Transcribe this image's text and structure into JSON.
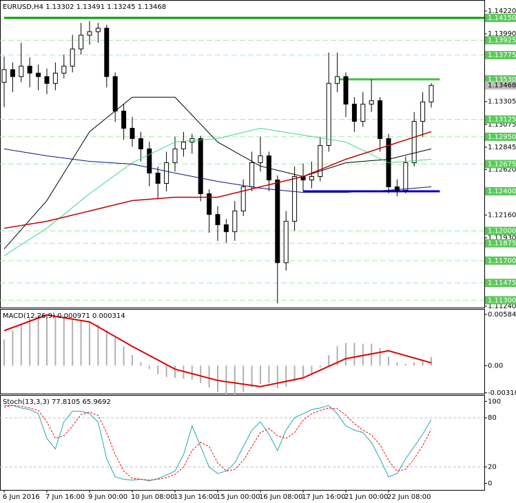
{
  "chart_data": [
    {
      "type": "candlestick",
      "title": "EURUSD,H4  1.13302 1.13491 1.13245 1.13468",
      "candles": [
        [
          1.135,
          1.1376,
          1.1325,
          1.13628
        ],
        [
          1.13628,
          1.137,
          1.134,
          1.13558
        ],
        [
          1.13558,
          1.139,
          1.135,
          1.13663
        ],
        [
          1.13663,
          1.1375,
          1.1345,
          1.13593
        ],
        [
          1.13593,
          1.1368,
          1.1342,
          1.13558
        ],
        [
          1.13558,
          1.1364,
          1.1338,
          1.13489
        ],
        [
          1.13489,
          1.137,
          1.1342,
          1.13593
        ],
        [
          1.13593,
          1.1378,
          1.1354,
          1.13663
        ],
        [
          1.13663,
          1.1398,
          1.136,
          1.13837
        ],
        [
          1.13837,
          1.141,
          1.1378,
          1.13976
        ],
        [
          1.13976,
          1.1412,
          1.1388,
          1.14011
        ],
        [
          1.14011,
          1.141,
          1.139,
          1.14046
        ],
        [
          1.14046,
          1.1408,
          1.1345,
          1.13558
        ],
        [
          1.13558,
          1.136,
          1.131,
          1.1321
        ],
        [
          1.1321,
          1.1328,
          1.1292,
          1.13036
        ],
        [
          1.13036,
          1.1315,
          1.1285,
          1.12932
        ],
        [
          1.12932,
          1.13,
          1.127,
          1.12828
        ],
        [
          1.12828,
          1.129,
          1.1245,
          1.12584
        ],
        [
          1.12584,
          1.1265,
          1.1232,
          1.1248
        ],
        [
          1.1248,
          1.128,
          1.124,
          1.12689
        ],
        [
          1.12689,
          1.1295,
          1.126,
          1.12828
        ],
        [
          1.12828,
          1.13,
          1.1275,
          1.12897
        ],
        [
          1.12897,
          1.1298,
          1.1278,
          1.12932
        ],
        [
          1.12932,
          1.1296,
          1.123,
          1.12375
        ],
        [
          1.12375,
          1.1242,
          1.1198,
          1.12166
        ],
        [
          1.12166,
          1.1225,
          1.119,
          1.12062
        ],
        [
          1.12062,
          1.1212,
          1.1188,
          1.11992
        ],
        [
          1.11992,
          1.123,
          1.119,
          1.12201
        ],
        [
          1.12201,
          1.1252,
          1.1215,
          1.12445
        ],
        [
          1.12445,
          1.128,
          1.124,
          1.12689
        ],
        [
          1.12689,
          1.1295,
          1.126,
          1.12758
        ],
        [
          1.12758,
          1.128,
          1.124,
          1.12514
        ],
        [
          1.12514,
          1.1256,
          1.1127,
          1.11679
        ],
        [
          1.11679,
          1.122,
          1.116,
          1.12097
        ],
        [
          1.12097,
          1.1265,
          1.12,
          1.12549
        ],
        [
          1.12549,
          1.1268,
          1.124,
          1.12514
        ],
        [
          1.12514,
          1.127,
          1.1243,
          1.12549
        ],
        [
          1.12549,
          1.1295,
          1.125,
          1.12862
        ],
        [
          1.12862,
          1.138,
          1.128,
          1.13489
        ],
        [
          1.13489,
          1.138,
          1.134,
          1.13558
        ],
        [
          1.13558,
          1.136,
          1.1315,
          1.1328
        ],
        [
          1.1328,
          1.1335,
          1.13,
          1.13106
        ],
        [
          1.13106,
          1.134,
          1.1305,
          1.1328
        ],
        [
          1.1328,
          1.1353,
          1.132,
          1.13315
        ],
        [
          1.13315,
          1.1335,
          1.128,
          1.12932
        ],
        [
          1.12932,
          1.1298,
          1.1238,
          1.12445
        ],
        [
          1.12445,
          1.1252,
          1.1235,
          1.1241
        ],
        [
          1.1241,
          1.1275,
          1.1238,
          1.12689
        ],
        [
          1.12689,
          1.132,
          1.1265,
          1.13106
        ],
        [
          1.13106,
          1.134,
          1.1295,
          1.13302
        ],
        [
          1.13302,
          1.13491,
          1.13245,
          1.13468
        ]
      ],
      "ylim": [
        1.11226,
        1.14324
      ],
      "yticks": [
        {
          "value": 1.1422,
          "label": "1.14220"
        },
        {
          "value": 1.1399,
          "label": "1.13990"
        },
        {
          "value": 1.13305,
          "label": "1.13305"
        },
        {
          "value": 1.13075,
          "label": "1.13075"
        },
        {
          "value": 1.12845,
          "label": "1.12845"
        },
        {
          "value": 1.1262,
          "label": "1.12620"
        },
        {
          "value": 1.1216,
          "label": "1.12160"
        },
        {
          "value": 1.1193,
          "label": "1.11930"
        },
        {
          "value": 1.1124,
          "label": "1.11240"
        }
      ],
      "level_label_color": "#5cc85c",
      "levels": [
        {
          "value": 1.1415,
          "label": "1.14150",
          "color": "#00a000",
          "style": "solid",
          "x_start": 0,
          "x_end": 57
        },
        {
          "value": 1.13925,
          "label": "1.13925",
          "color": "#a8e8a8",
          "style": "dashed"
        },
        {
          "value": 1.13775,
          "label": "1.13775",
          "color": "#a8e8a8",
          "style": "dashed"
        },
        {
          "value": 1.1353,
          "label": "1.13530",
          "color": "#40c040",
          "style": "solid",
          "x_start": 39,
          "x_end": 51
        },
        {
          "value": 1.13125,
          "label": "1.13125",
          "color": "#a8e8a8",
          "style": "dashed"
        },
        {
          "value": 1.1295,
          "label": "1.12950",
          "color": "#a8e8a8",
          "style": "dashed"
        },
        {
          "value": 1.12675,
          "label": "1.12675",
          "color": "#a8e8a8",
          "style": "dashed"
        },
        {
          "value": 1.124,
          "label": "1.12400",
          "color": "#0000d0",
          "style": "solid",
          "x_start": 35,
          "x_end": 51
        },
        {
          "value": 1.12,
          "label": "1.12000",
          "color": "#a8e8a8",
          "style": "dashed"
        },
        {
          "value": 1.11875,
          "label": "1.11875",
          "color": "#a8e8a8",
          "style": "dashed"
        },
        {
          "value": 1.117,
          "label": "1.11700",
          "color": "#a8e8a8",
          "style": "dashed"
        },
        {
          "value": 1.11475,
          "label": "1.11475",
          "color": "#a8e8a8",
          "style": "dashed"
        },
        {
          "value": 1.113,
          "label": "1.11300",
          "color": "#a8e8a8",
          "style": "dashed"
        }
      ],
      "last_price": {
        "value": 1.13468,
        "label": "1.13468"
      },
      "ma_x": [
        0,
        5,
        10,
        15,
        20,
        25,
        30,
        35,
        40,
        45,
        50
      ],
      "series": [
        {
          "color": "#000000",
          "values": [
            1.11818,
            1.12306,
            1.13002,
            1.1335,
            1.1335,
            1.12897,
            1.12654,
            1.12549,
            1.12688,
            1.12723,
            1.12828
          ]
        },
        {
          "color": "#3cd88c",
          "values": [
            1.11749,
            1.12027,
            1.12375,
            1.12688,
            1.12897,
            1.12932,
            1.13036,
            1.12967,
            1.12897,
            1.12688,
            1.12723
          ]
        },
        {
          "color": "#c00000",
          "values": [
            1.12027,
            1.12097,
            1.12201,
            1.12306,
            1.1234,
            1.1234,
            1.12445,
            1.12549,
            1.12723,
            1.12862,
            1.13002
          ]
        },
        {
          "color": "#101080",
          "values": [
            1.12828,
            1.12758,
            1.12702,
            1.12674,
            1.12584,
            1.125,
            1.12431,
            1.12389,
            1.12389,
            1.1241,
            1.12445
          ]
        }
      ],
      "xticks": [
        {
          "value": 0,
          "label": "6 Jun 2016"
        },
        {
          "value": 5,
          "label": "7 Jun 16:00"
        },
        {
          "value": 10,
          "label": "9 Jun 00:00"
        },
        {
          "value": 15,
          "label": "10 Jun 08:00"
        },
        {
          "value": 20,
          "label": "13 Jun 16:00"
        },
        {
          "value": 25,
          "label": "15 Jun 00:00"
        },
        {
          "value": 30,
          "label": "16 Jun 08:00"
        },
        {
          "value": 35,
          "label": "17 Jun 16:00"
        },
        {
          "value": 40,
          "label": "21 Jun 00:00"
        },
        {
          "value": 45,
          "label": "22 Jun 08:00"
        }
      ]
    },
    {
      "type": "macd",
      "title": "MACD(12,26,9) 0.000971 0.000314",
      "histogram_color": "#b0b0b0",
      "histogram": [
        0.003,
        0.004,
        0.0048,
        0.0054,
        0.0058,
        0.0058,
        0.0057,
        0.0055,
        0.0053,
        0.0052,
        0.005,
        0.0047,
        0.004,
        0.0032,
        0.0022,
        0.0012,
        0.0004,
        -0.0004,
        -0.001,
        -0.0013,
        -0.0014,
        -0.0015,
        -0.0016,
        -0.002,
        -0.0025,
        -0.003,
        -0.0033,
        -0.0033,
        -0.003,
        -0.0025,
        -0.0021,
        -0.002,
        -0.0026,
        -0.0024,
        -0.0018,
        -0.0013,
        -0.0009,
        -0.0002,
        0.0012,
        0.0022,
        0.0026,
        0.0026,
        0.0025,
        0.0025,
        0.002,
        0.001,
        0.0004,
        0.0002,
        0.0004,
        0.0007,
        0.000971
      ],
      "signal": {
        "color": "#e00000",
        "x": [
          0,
          5,
          10,
          15,
          20,
          25,
          30,
          35,
          40,
          45,
          50
        ],
        "values": [
          0.004,
          0.0058,
          0.005,
          0.0022,
          -0.0004,
          -0.0017,
          -0.0024,
          -0.0014,
          0.0008,
          0.0017,
          0.000314
        ]
      },
      "ylim": [
        -0.0032,
        0.0064
      ],
      "yticks": [
        0.005843,
        {
          "value": 0,
          "label": "0.00"
        },
        -0.003109
      ]
    },
    {
      "type": "stochastic",
      "title": "Stoch(13,3,3) 77.8105 65.9692",
      "series": [
        {
          "color": "#20a8b0",
          "dash": false,
          "values": [
            95,
            95,
            92,
            90,
            85,
            55,
            42,
            75,
            88,
            88,
            85,
            75,
            30,
            8,
            5,
            4,
            5,
            3,
            6,
            10,
            15,
            35,
            70,
            45,
            20,
            12,
            15,
            25,
            45,
            65,
            75,
            60,
            40,
            65,
            80,
            85,
            90,
            92,
            95,
            85,
            70,
            65,
            62,
            50,
            30,
            8,
            12,
            30,
            45,
            60,
            77.8105
          ]
        },
        {
          "color": "#ff0000",
          "dash": true,
          "values": [
            93,
            95,
            94,
            92,
            89,
            75,
            55,
            58,
            70,
            84,
            87,
            83,
            62,
            35,
            15,
            6,
            5,
            4,
            5,
            7,
            11,
            20,
            40,
            50,
            45,
            25,
            15,
            17,
            28,
            45,
            62,
            67,
            58,
            55,
            62,
            77,
            85,
            89,
            92,
            91,
            83,
            73,
            65,
            59,
            47,
            28,
            15,
            17,
            30,
            46,
            65.9692
          ]
        }
      ],
      "levels": [
        20,
        80
      ],
      "ylim": [
        -8,
        107
      ],
      "yticks": [
        0,
        20,
        80,
        100
      ]
    }
  ]
}
